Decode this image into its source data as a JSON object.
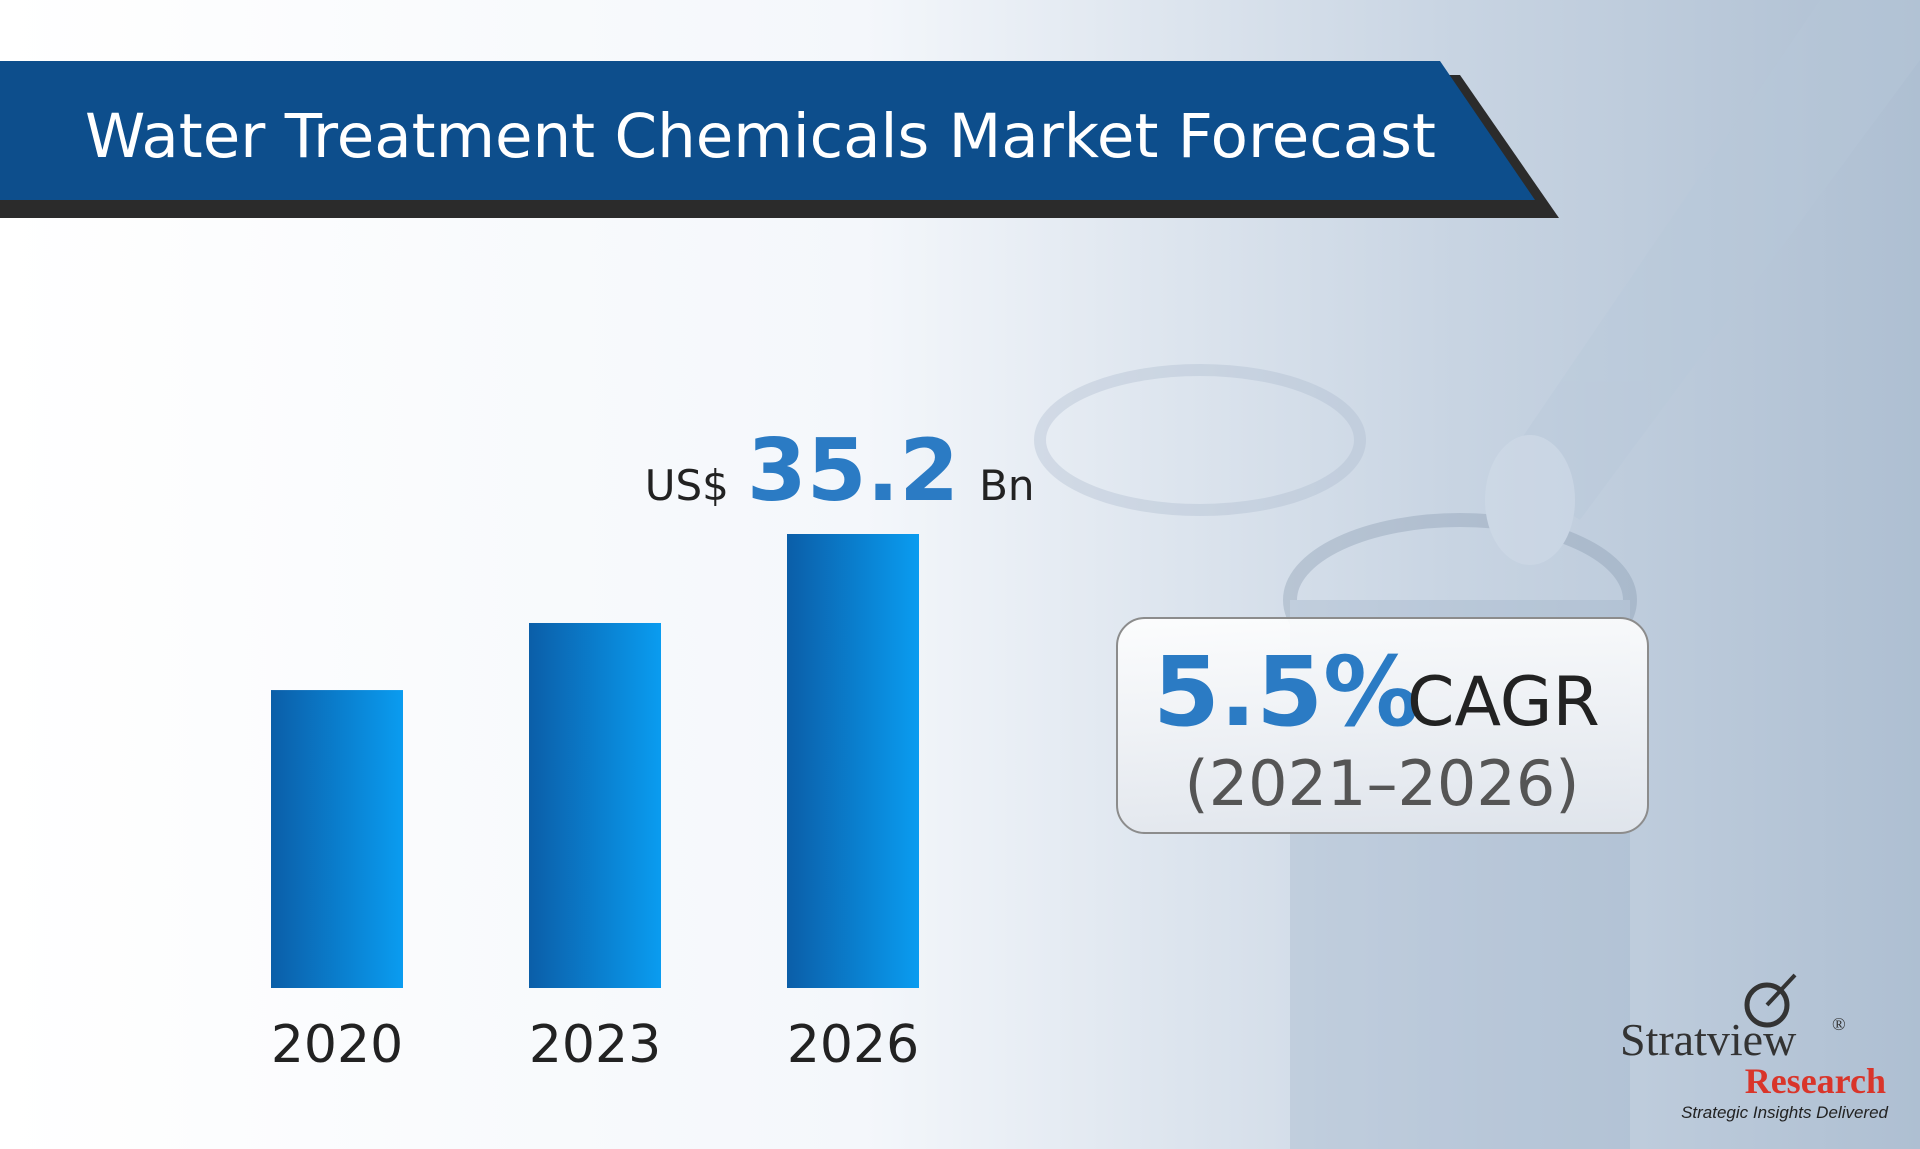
{
  "chart_data": {
    "type": "bar",
    "title": "Water Treatment Chemicals Market Forecast",
    "categories": [
      "2020",
      "2023",
      "2026"
    ],
    "values": [
      23.1,
      28.3,
      35.2
    ],
    "value_labels": [
      null,
      null,
      "35.2"
    ],
    "value_prefix": "US$",
    "value_unit": "Bn",
    "color": "#0a8ae6",
    "cagr": {
      "value": "5.5%",
      "label": "CAGR",
      "period": "(2021–2026)"
    }
  },
  "logo": {
    "name": "Stratview",
    "mark": "®",
    "sub": "Research",
    "tagline": "Strategic Insights Delivered"
  }
}
